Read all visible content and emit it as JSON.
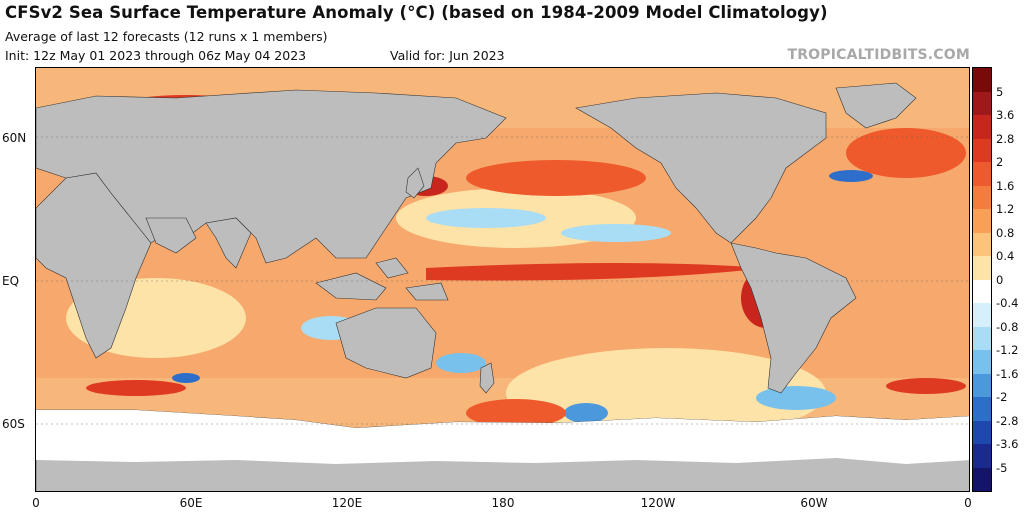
{
  "header": {
    "title": "CFSv2 Sea Surface Temperature Anomaly (°C) (based on 1984-2009 Model Climatology)",
    "subtitle": "Average of last 12 forecasts (12 runs x 1 members)",
    "init": "Init: 12z May 01 2023 through 06z May 04 2023",
    "valid": "Valid for: Jun 2023",
    "watermark": "TROPICALTIDBITS.COM"
  },
  "map": {
    "lat_labels": [
      "60N",
      "EQ",
      "60S"
    ],
    "lon_labels": [
      "0",
      "60E",
      "120E",
      "180",
      "120W",
      "60W",
      "0"
    ],
    "land_color": "#bdbdbd",
    "ice_color": "#ffffff"
  },
  "colorbar": {
    "labels": [
      "5",
      "3.6",
      "2.8",
      "2",
      "1.6",
      "1.2",
      "0.8",
      "0.4",
      "0",
      "-0.4",
      "-0.8",
      "-1.2",
      "-1.6",
      "-2",
      "-2.8",
      "-3.6",
      "-5"
    ],
    "colors": [
      "#7a0a0a",
      "#a0181a",
      "#c8261c",
      "#de3a22",
      "#ee5a2c",
      "#f57c3c",
      "#f9a055",
      "#fbc478",
      "#fde3a8",
      "#ffffff",
      "#d6f0fb",
      "#a9dcf5",
      "#78c1ed",
      "#4b98dd",
      "#2c6ec9",
      "#1e48b0",
      "#1a2a8e",
      "#14146a"
    ]
  }
}
